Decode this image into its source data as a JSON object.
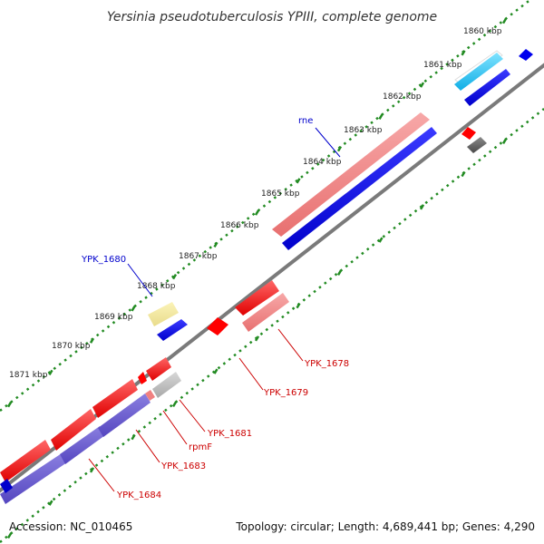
{
  "title": "Yersinia pseudotuberculosis YPIII, complete genome",
  "footer": {
    "accession": "Accession: NC_010465",
    "summary": "Topology: circular; Length: 4,689,441 bp; Genes: 4,290"
  },
  "scale_labels": [
    "1860 kbp",
    "1861 kbp",
    "1862 kbp",
    "1863 kbp",
    "1864 kbp",
    "1865 kbp",
    "1866 kbp",
    "1867 kbp",
    "1868 kbp",
    "1869 kbp",
    "1870 kbp",
    "1871 kbp"
  ],
  "gene_labels": {
    "rne": "rne",
    "ypk_1680": "YPK_1680",
    "ypk_1678": "YPK_1678",
    "ypk_1679": "YPK_1679",
    "ypk_1681": "YPK_1681",
    "rpmf": "rpmF",
    "ypk_1683": "YPK_1683",
    "ypk_1684": "YPK_1684"
  },
  "colors": {
    "backbone": "#808080",
    "scale_ticks": "#228b22",
    "cds_red": "#ff0000",
    "cds_pink": "#f08080",
    "cds_blue": "#0000ff",
    "cds_cyan": "#00bfff",
    "cds_violet": "#6a5acd",
    "cds_yellow": "#f0e68c",
    "cds_gray": "#606060",
    "label_blue": "#0000cc",
    "label_red": "#cc0000"
  }
}
